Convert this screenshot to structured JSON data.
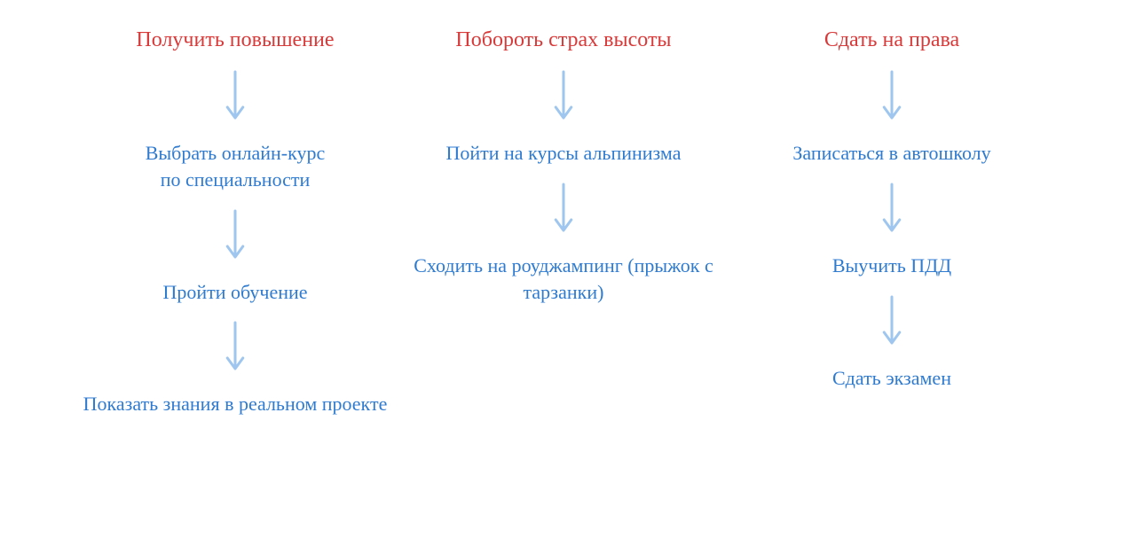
{
  "diagram": {
    "type": "flowchart",
    "background_color": "#ffffff",
    "goal_color": "#d83a3a",
    "step_color": "#2f7bd0",
    "arrow_color": "#9ec6ee",
    "font_family": "Comic Sans MS, Segoe Script, cursive",
    "goal_fontsize": 24,
    "step_fontsize": 22,
    "arrow_length": 56,
    "arrow_stroke_width": 3,
    "columns": [
      {
        "goal": "Получить повышение",
        "steps": [
          "Выбрать онлайн-курс по специальности",
          "Пройти обучение",
          "Показать знания в реальном проекте"
        ]
      },
      {
        "goal": "Побороть страх высоты",
        "steps": [
          "Пойти на курсы альпинизма",
          "Сходить на роуджампинг (прыжок с тарзанки)"
        ]
      },
      {
        "goal": "Сдать на права",
        "steps": [
          "Записаться в автошколу",
          "Выучить ПДД",
          "Сдать экзамен"
        ]
      }
    ]
  }
}
